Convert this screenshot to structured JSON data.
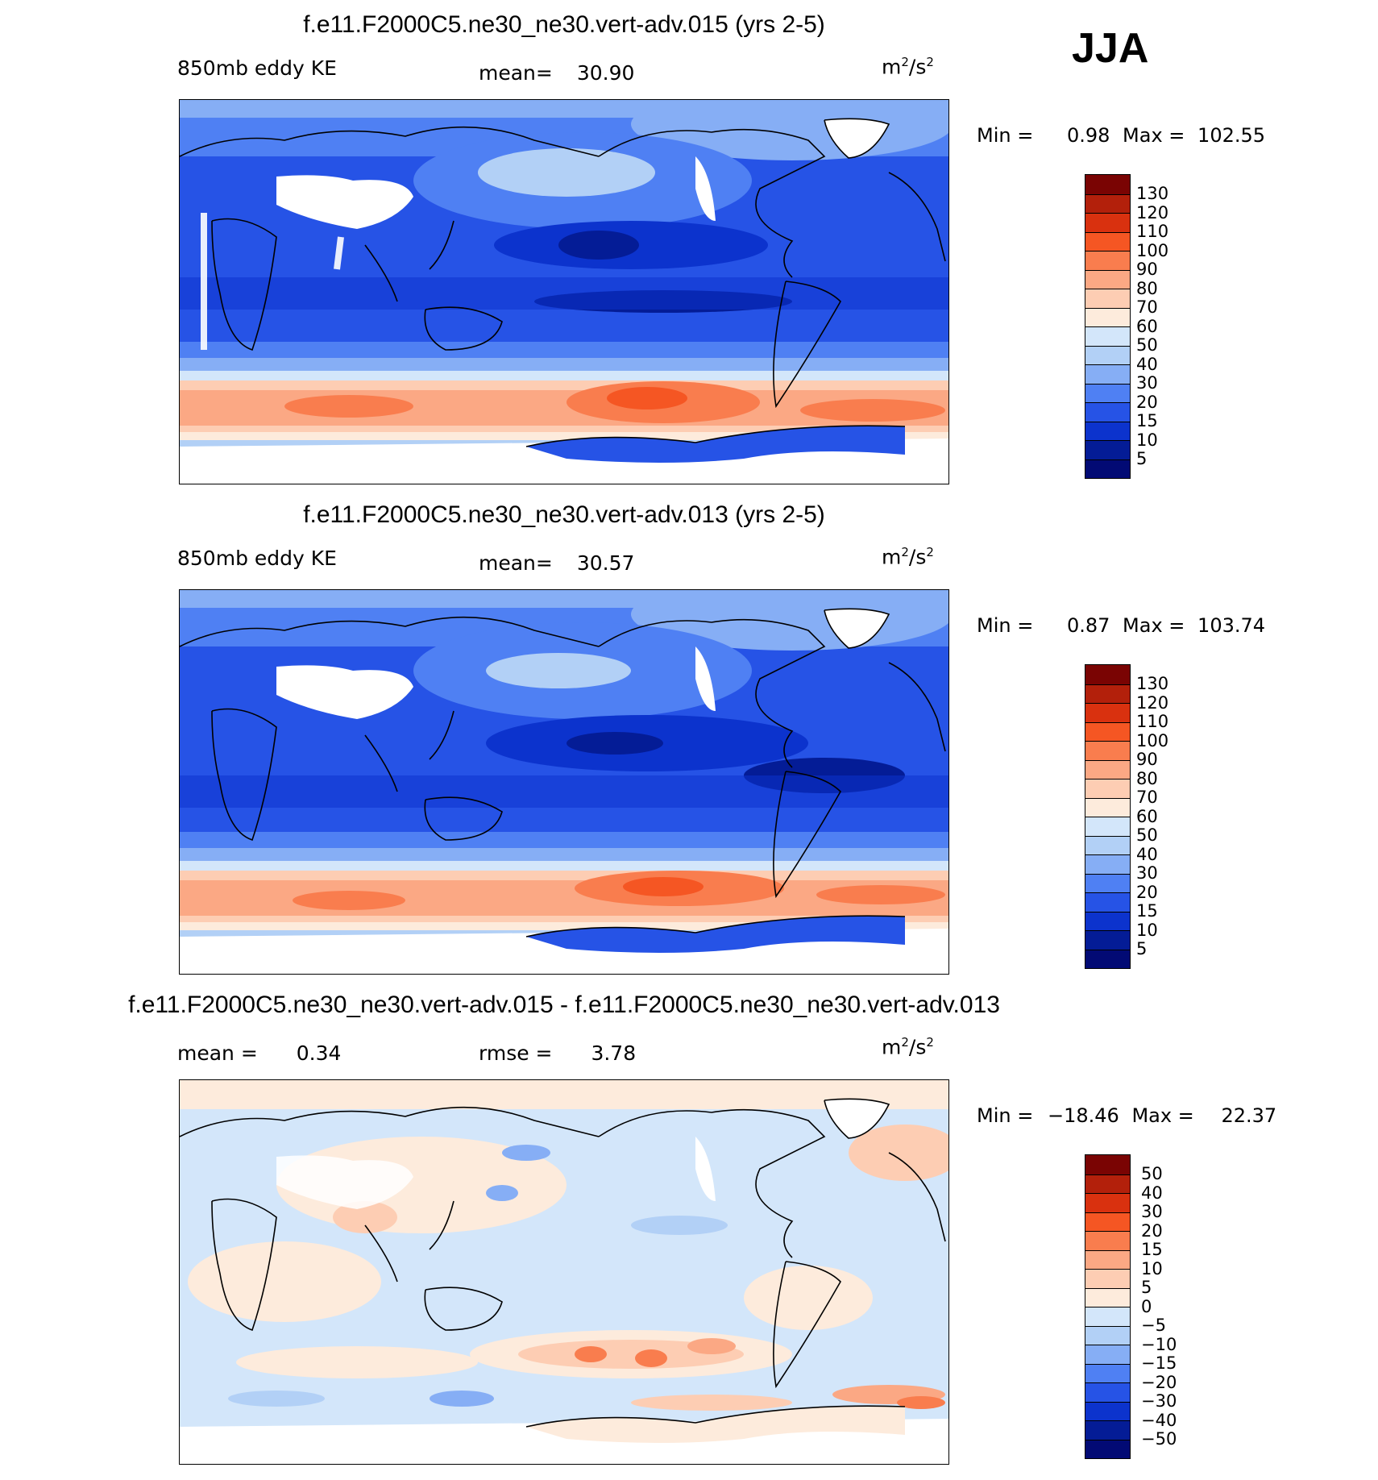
{
  "season": "JJA",
  "panels": [
    {
      "title": "f.e11.F2000C5.ne30_ne30.vert-adv.015 (yrs 2-5)",
      "left_label": "850mb eddy KE",
      "stat_label": "mean=",
      "stat_value": "30.90",
      "unit": "m",
      "unit_sup1": "2",
      "unit_mid": "/s",
      "unit_sup2": "2",
      "min_label": "Min =",
      "min_value": "0.98",
      "max_label": "Max =",
      "max_value": "102.55",
      "levels": [
        "130",
        "120",
        "110",
        "100",
        "90",
        "80",
        "70",
        "60",
        "50",
        "40",
        "30",
        "20",
        "15",
        "10",
        "5"
      ]
    },
    {
      "title": "f.e11.F2000C5.ne30_ne30.vert-adv.013 (yrs 2-5)",
      "left_label": "850mb eddy KE",
      "stat_label": "mean=",
      "stat_value": "30.57",
      "unit": "m",
      "unit_sup1": "2",
      "unit_mid": "/s",
      "unit_sup2": "2",
      "min_label": "Min =",
      "min_value": "0.87",
      "max_label": "Max =",
      "max_value": "103.74",
      "levels": [
        "130",
        "120",
        "110",
        "100",
        "90",
        "80",
        "70",
        "60",
        "50",
        "40",
        "30",
        "20",
        "15",
        "10",
        "5"
      ]
    },
    {
      "title": "f.e11.F2000C5.ne30_ne30.vert-adv.015 - f.e11.F2000C5.ne30_ne30.vert-adv.013",
      "left_label": "mean =",
      "left_value": "0.34",
      "stat_label": "rmse =",
      "stat_value": "3.78",
      "unit": "m",
      "unit_sup1": "2",
      "unit_mid": "/s",
      "unit_sup2": "2",
      "min_label": "Min =",
      "min_value": "−18.46",
      "max_label": "Max =",
      "max_value": "22.37",
      "levels": [
        "50",
        "40",
        "30",
        "20",
        "15",
        "10",
        "5",
        "0",
        "−5",
        "−10",
        "−15",
        "−20",
        "−30",
        "−40",
        "−50"
      ]
    }
  ],
  "colormap": [
    "#7a0403",
    "#b3200b",
    "#d9310f",
    "#f55623",
    "#f97d4e",
    "#fba884",
    "#fdcdb3",
    "#fdebdc",
    "#d3e6fa",
    "#b2d0f6",
    "#86aef5",
    "#4f80f3",
    "#2653e6",
    "#0c33cd",
    "#041c96",
    "#020a74"
  ],
  "colors": {
    "ocean_blue": "#2653e6",
    "land_blue": "#4f80f3",
    "storm_track": "#fba884",
    "storm_core": "#f97d4e",
    "diff_neutral_pos": "#fdebdc",
    "diff_neutral_neg": "#d3e6fa"
  }
}
